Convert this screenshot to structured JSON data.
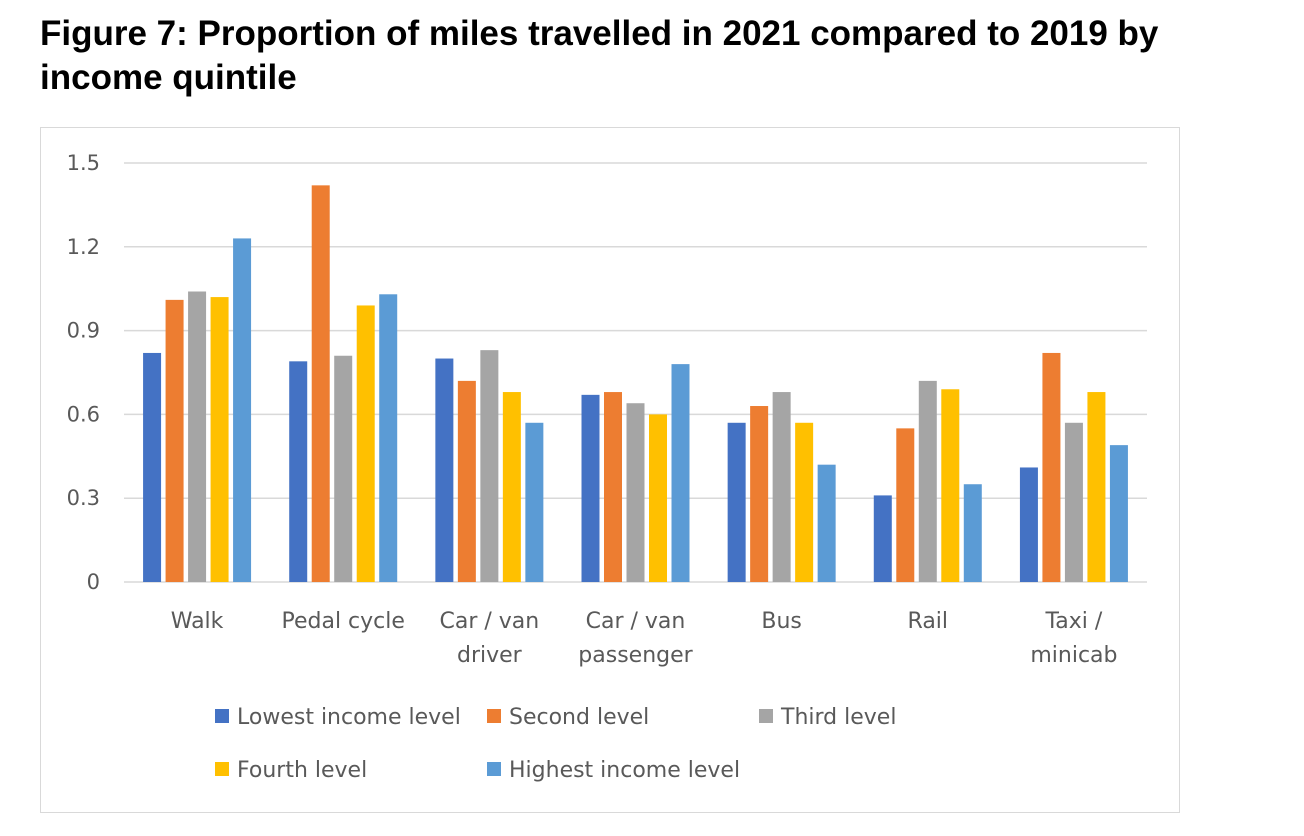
{
  "figure": {
    "title": "Figure 7: Proportion of miles travelled in 2021 compared to 2019 by income quintile"
  },
  "chart_data": {
    "type": "bar",
    "title": "",
    "xlabel": "",
    "ylabel": "",
    "ylim": [
      0,
      1.5
    ],
    "yticks": [
      "0",
      "0.3",
      "0.6",
      "0.9",
      "1.2",
      "1.5"
    ],
    "ytick_values": [
      0,
      0.3,
      0.6,
      0.9,
      1.2,
      1.5
    ],
    "grid": true,
    "legend_position": "bottom",
    "categories": [
      [
        "Walk"
      ],
      [
        "Pedal cycle"
      ],
      [
        "Car / van",
        "driver"
      ],
      [
        "Car / van",
        "passenger"
      ],
      [
        "Bus"
      ],
      [
        "Rail"
      ],
      [
        "Taxi /",
        "minicab"
      ]
    ],
    "series": [
      {
        "name": "Lowest income level",
        "color": "#4472c4",
        "values": [
          0.82,
          0.79,
          0.8,
          0.67,
          0.57,
          0.31,
          0.41
        ]
      },
      {
        "name": "Second level",
        "color": "#ed7d31",
        "values": [
          1.01,
          1.42,
          0.72,
          0.68,
          0.63,
          0.55,
          0.82
        ]
      },
      {
        "name": "Third level",
        "color": "#a5a5a5",
        "values": [
          1.04,
          0.81,
          0.83,
          0.64,
          0.68,
          0.72,
          0.57
        ]
      },
      {
        "name": "Fourth level",
        "color": "#ffc000",
        "values": [
          1.02,
          0.99,
          0.68,
          0.6,
          0.57,
          0.69,
          0.68
        ]
      },
      {
        "name": "Highest income level",
        "color": "#5b9bd5",
        "values": [
          1.23,
          1.03,
          0.57,
          0.78,
          0.42,
          0.35,
          0.49
        ]
      }
    ],
    "gridline_color": "#d9d9d9"
  }
}
